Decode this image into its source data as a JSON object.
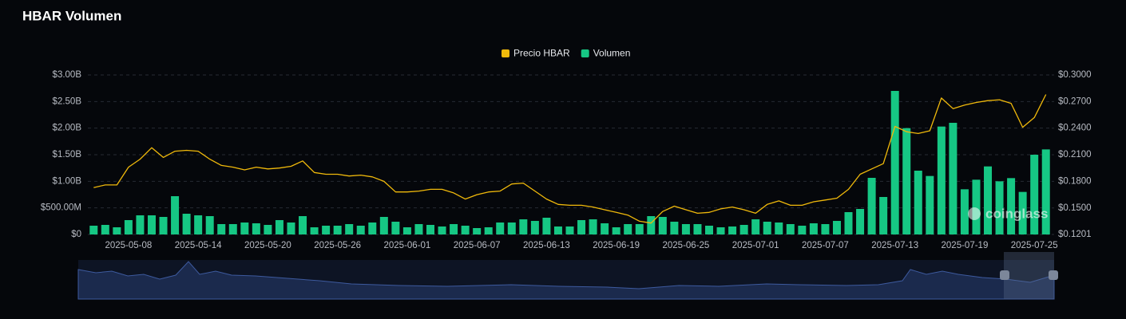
{
  "chart_data": {
    "type": "bar-line",
    "title": "HBAR Volumen",
    "watermark": "coinglass",
    "categories": [
      null,
      null,
      null,
      "2025-05-08",
      null,
      null,
      null,
      null,
      null,
      "2025-05-14",
      null,
      null,
      null,
      null,
      null,
      "2025-05-20",
      null,
      null,
      null,
      null,
      null,
      "2025-05-26",
      null,
      null,
      null,
      null,
      null,
      "2025-06-01",
      null,
      null,
      null,
      null,
      null,
      "2025-06-07",
      null,
      null,
      null,
      null,
      null,
      "2025-06-13",
      null,
      null,
      null,
      null,
      null,
      "2025-06-19",
      null,
      null,
      null,
      null,
      null,
      "2025-06-25",
      null,
      null,
      null,
      null,
      null,
      "2025-07-01",
      null,
      null,
      null,
      null,
      null,
      "2025-07-07",
      null,
      null,
      null,
      null,
      null,
      "2025-07-13",
      null,
      null,
      null,
      null,
      null,
      "2025-07-19",
      null,
      null,
      null,
      null,
      null,
      "2025-07-25",
      null
    ],
    "series": [
      {
        "name": "Precio HBAR",
        "type": "line",
        "axis": "y2",
        "color": "#f0b90b",
        "values": [
          0.173,
          0.176,
          0.176,
          0.196,
          0.205,
          0.218,
          0.207,
          0.214,
          0.215,
          0.214,
          0.205,
          0.198,
          0.196,
          0.193,
          0.196,
          0.194,
          0.195,
          0.197,
          0.203,
          0.19,
          0.188,
          0.188,
          0.186,
          0.187,
          0.185,
          0.18,
          0.168,
          0.168,
          0.169,
          0.171,
          0.171,
          0.167,
          0.16,
          0.165,
          0.168,
          0.169,
          0.177,
          0.178,
          0.169,
          0.16,
          0.154,
          0.153,
          0.153,
          0.151,
          0.148,
          0.145,
          0.142,
          0.135,
          0.133,
          0.146,
          0.152,
          0.148,
          0.144,
          0.145,
          0.149,
          0.151,
          0.148,
          0.144,
          0.154,
          0.158,
          0.153,
          0.153,
          0.157,
          0.159,
          0.161,
          0.171,
          0.188,
          0.194,
          0.2,
          0.242,
          0.236,
          0.234,
          0.237,
          0.274,
          0.262,
          0.266,
          0.269,
          0.271,
          0.272,
          0.268,
          0.241,
          0.252,
          0.278
        ]
      },
      {
        "name": "Volumen",
        "type": "bar",
        "axis": "y",
        "color": "#16c784",
        "values": [
          165000000,
          180000000,
          135000000,
          270000000,
          360000000,
          360000000,
          330000000,
          720000000,
          390000000,
          360000000,
          345000000,
          195000000,
          195000000,
          225000000,
          210000000,
          180000000,
          270000000,
          225000000,
          345000000,
          135000000,
          165000000,
          165000000,
          195000000,
          165000000,
          225000000,
          330000000,
          240000000,
          135000000,
          195000000,
          180000000,
          150000000,
          195000000,
          165000000,
          120000000,
          135000000,
          225000000,
          225000000,
          285000000,
          255000000,
          315000000,
          150000000,
          150000000,
          270000000,
          285000000,
          210000000,
          135000000,
          195000000,
          195000000,
          345000000,
          330000000,
          240000000,
          195000000,
          195000000,
          165000000,
          135000000,
          150000000,
          180000000,
          285000000,
          240000000,
          225000000,
          195000000,
          165000000,
          210000000,
          195000000,
          255000000,
          420000000,
          480000000,
          1065000000,
          705000000,
          2700000000,
          2000000000,
          1200000000,
          1100000000,
          2030000000,
          2100000000,
          850000000,
          1030000000,
          1280000000,
          1000000000,
          1060000000,
          800000000,
          1500000000,
          1600000000
        ]
      }
    ],
    "ylim": [
      0,
      3000000000
    ],
    "yticks": [
      {
        "value": 0,
        "label": "$0"
      },
      {
        "value": 500000000,
        "label": "$500.00M"
      },
      {
        "value": 1000000000,
        "label": "$1.00B"
      },
      {
        "value": 1500000000,
        "label": "$1.50B"
      },
      {
        "value": 2000000000,
        "label": "$2.00B"
      },
      {
        "value": 2500000000,
        "label": "$2.50B"
      },
      {
        "value": 3000000000,
        "label": "$3.00B"
      }
    ],
    "y2lim": [
      0.1201,
      0.3
    ],
    "y2ticks": [
      {
        "value": 0.1201,
        "label": "$0.1201"
      },
      {
        "value": 0.15,
        "label": "$0.1500"
      },
      {
        "value": 0.18,
        "label": "$0.1800"
      },
      {
        "value": 0.21,
        "label": "$0.2100"
      },
      {
        "value": 0.24,
        "label": "$0.2400"
      },
      {
        "value": 0.27,
        "label": "$0.2700"
      },
      {
        "value": 0.3,
        "label": "$0.3000"
      }
    ],
    "grid": true,
    "legend": "top"
  }
}
